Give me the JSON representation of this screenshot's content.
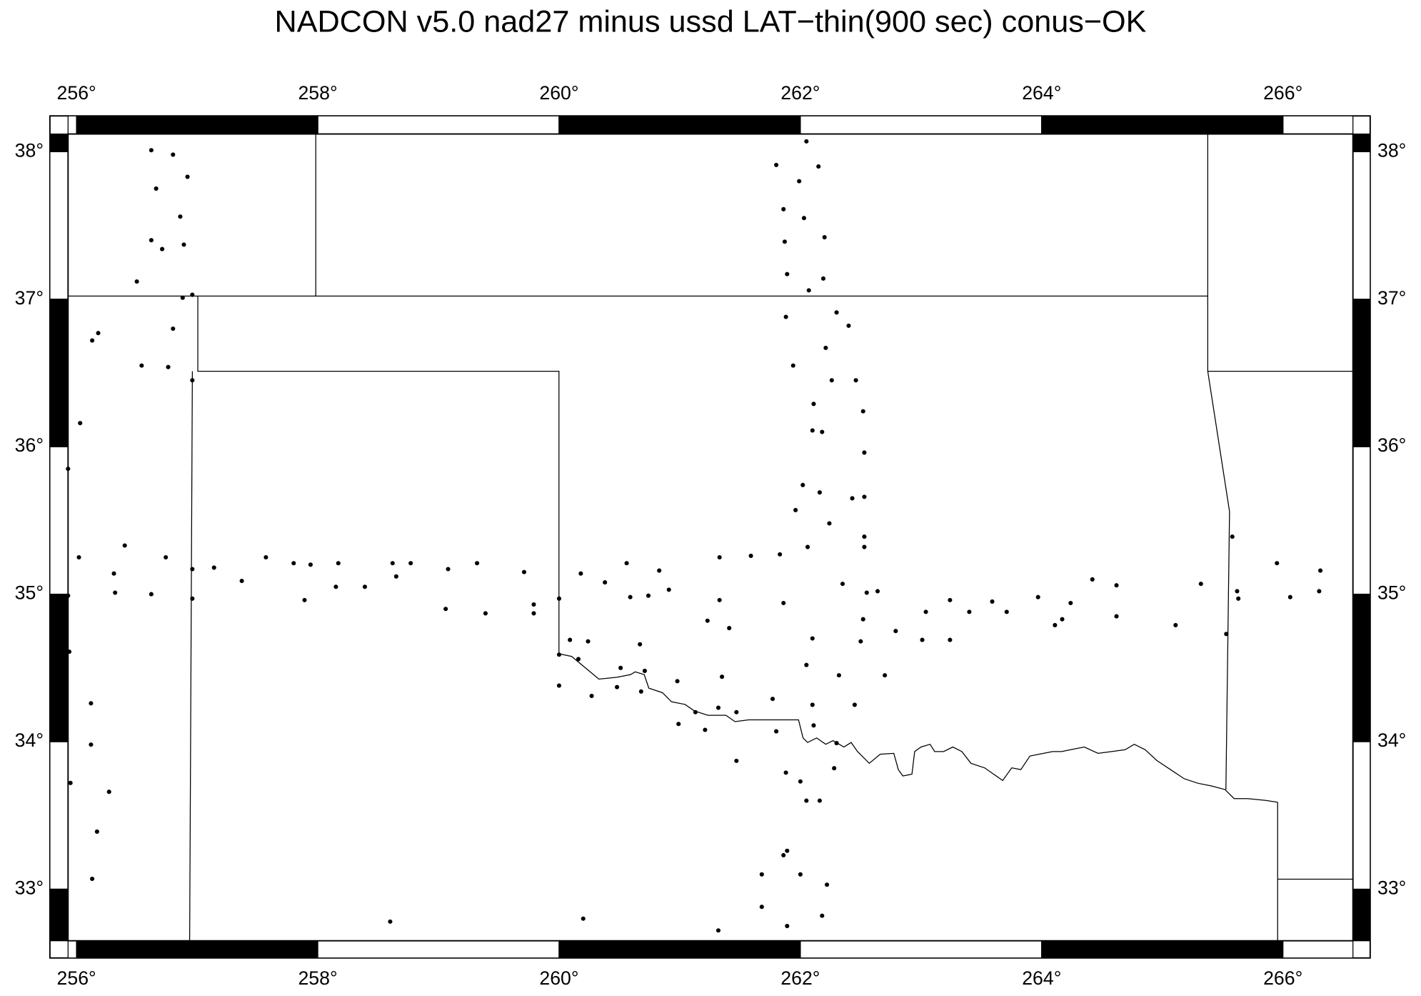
{
  "chart_data": {
    "type": "scatter",
    "title": "NADCON v5.0 nad27 minus ussd LAT−thin(900 sec) conus−OK",
    "color": "#000000",
    "xlim": [
      255.93,
      266.58
    ],
    "ylim": [
      32.65,
      38.12
    ],
    "xticks": [
      {
        "value": 256,
        "label": "256°"
      },
      {
        "value": 258,
        "label": "258°"
      },
      {
        "value": 260,
        "label": "260°"
      },
      {
        "value": 262,
        "label": "262°"
      },
      {
        "value": 264,
        "label": "264°"
      },
      {
        "value": 266,
        "label": "266°"
      }
    ],
    "yticks": [
      {
        "value": 33,
        "label": "33°"
      },
      {
        "value": 34,
        "label": "34°"
      },
      {
        "value": 35,
        "label": "35°"
      },
      {
        "value": 36,
        "label": "36°"
      },
      {
        "value": 37,
        "label": "37°"
      },
      {
        "value": 38,
        "label": "38°"
      }
    ],
    "x": [
      256.62,
      256.8,
      256.66,
      256.92,
      256.86,
      256.62,
      256.71,
      256.89,
      256.5,
      256.88,
      256.96,
      256.8,
      256.18,
      256.13,
      256.54,
      256.76,
      256.96,
      256.03,
      255.93,
      256.02,
      256.4,
      256.31,
      256.32,
      256.62,
      256.74,
      256.96,
      256.96,
      257.14,
      257.37,
      257.57,
      257.8,
      257.94,
      257.89,
      258.17,
      258.15,
      258.39,
      258.62,
      258.65,
      258.77,
      259.08,
      259.06,
      259.32,
      259.39,
      259.71,
      259.79,
      259.79,
      260.0,
      260.18,
      260.38,
      260.56,
      260.59,
      260.74,
      260.83,
      260.91,
      255.94,
      256.12,
      256.12,
      255.95,
      256.27,
      256.17,
      256.13,
      260.0,
      260.09,
      260.16,
      260.24,
      260.51,
      260.67,
      260.71,
      260.48,
      260.68,
      260.27,
      260.0,
      260.98,
      260.99,
      261.13,
      261.21,
      261.23,
      261.33,
      261.41,
      261.35,
      261.33,
      261.32,
      261.47,
      261.47,
      261.59,
      261.77,
      261.8,
      261.83,
      261.86,
      261.88,
      262.0,
      262.05,
      262.16,
      262.1,
      262.05,
      262.1,
      262.11,
      262.3,
      262.32,
      262.28,
      262.45,
      262.5,
      262.52,
      262.55,
      262.64,
      262.35,
      262.43,
      262.53,
      262.53,
      262.52,
      262.46,
      262.26,
      262.11,
      262.1,
      262.18,
      262.02,
      261.96,
      262.16,
      262.24,
      262.06,
      261.8,
      262.15,
      261.99,
      262.05,
      261.86,
      262.03,
      261.87,
      262.2,
      261.89,
      262.19,
      262.07,
      262.3,
      262.4,
      261.88,
      262.21,
      261.94,
      262.7,
      262.79,
      263.01,
      263.04,
      263.24,
      263.24,
      263.4,
      263.59,
      263.71,
      263.97,
      264.11,
      264.17,
      264.24,
      264.42,
      264.62,
      264.62,
      265.11,
      265.32,
      265.53,
      265.58,
      265.62,
      265.63,
      265.95,
      266.06,
      266.31,
      266.3,
      261.68,
      261.89,
      261.86,
      262.0,
      262.22,
      261.68,
      261.89,
      262.18,
      261.32,
      258.6,
      260.2,
      255.93,
      262.53,
      262.53
    ],
    "values": [
      38.01,
      37.98,
      37.75,
      37.83,
      37.56,
      37.4,
      37.34,
      37.37,
      37.12,
      37.01,
      37.03,
      36.8,
      36.77,
      36.72,
      36.55,
      36.54,
      36.45,
      36.16,
      35.85,
      35.25,
      35.33,
      35.14,
      35.01,
      35.0,
      35.25,
      35.17,
      34.97,
      35.18,
      35.09,
      35.25,
      35.21,
      35.2,
      34.96,
      35.21,
      35.05,
      35.05,
      35.21,
      35.12,
      35.21,
      35.17,
      34.9,
      35.21,
      34.87,
      35.15,
      34.93,
      34.87,
      34.97,
      35.14,
      35.08,
      35.21,
      34.98,
      34.99,
      35.16,
      35.03,
      34.61,
      34.26,
      33.98,
      33.72,
      33.66,
      33.39,
      33.07,
      34.59,
      34.69,
      34.56,
      34.68,
      34.5,
      34.66,
      34.48,
      34.37,
      34.34,
      34.31,
      34.38,
      34.41,
      34.12,
      34.2,
      34.08,
      34.82,
      34.96,
      34.77,
      34.44,
      35.25,
      34.23,
      34.2,
      33.87,
      35.26,
      34.29,
      34.07,
      35.27,
      34.94,
      33.79,
      33.73,
      33.6,
      33.6,
      34.7,
      34.52,
      34.25,
      34.11,
      33.99,
      34.45,
      33.82,
      34.25,
      34.68,
      34.83,
      35.01,
      35.02,
      35.07,
      35.65,
      35.66,
      35.96,
      36.24,
      36.45,
      36.45,
      36.29,
      36.11,
      36.1,
      35.74,
      35.57,
      35.69,
      35.48,
      35.32,
      37.91,
      37.9,
      37.8,
      38.07,
      37.61,
      37.55,
      37.39,
      37.42,
      37.17,
      37.14,
      37.06,
      36.91,
      36.82,
      36.88,
      36.67,
      36.55,
      34.45,
      34.75,
      34.69,
      34.88,
      34.96,
      34.69,
      34.88,
      34.95,
      34.88,
      34.98,
      34.79,
      34.83,
      34.94,
      35.1,
      35.06,
      34.85,
      34.79,
      35.07,
      34.73,
      35.39,
      35.02,
      34.97,
      35.21,
      34.98,
      35.16,
      35.02,
      33.1,
      33.26,
      33.23,
      33.1,
      33.03,
      32.88,
      32.75,
      32.82,
      32.72,
      32.78,
      32.8,
      34.99,
      35.39,
      35.32
    ]
  }
}
